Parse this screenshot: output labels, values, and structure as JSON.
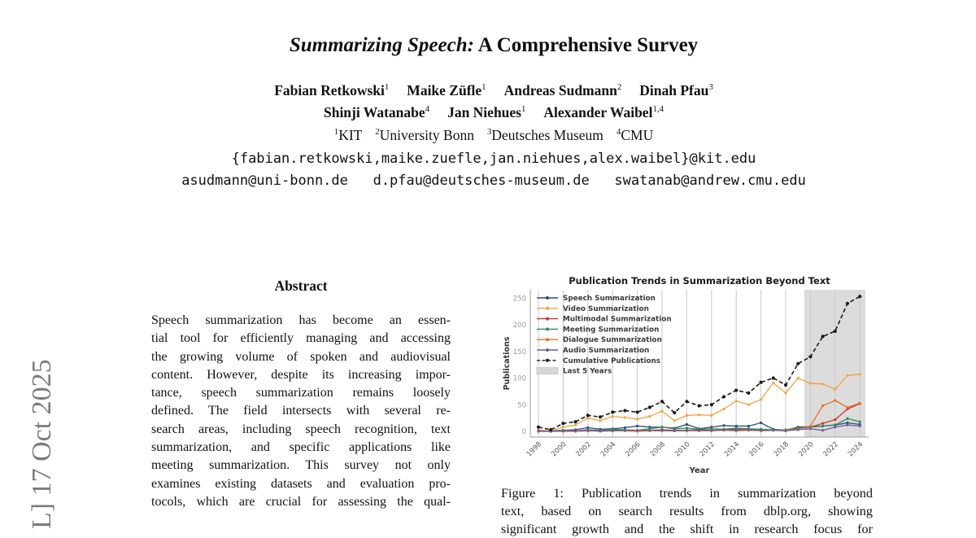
{
  "watermark": {
    "text": "L] 17 Oct 2025"
  },
  "header": {
    "title_italic": "Summarizing Speech:",
    "title_rest": " A Comprehensive Survey",
    "author_rows": [
      [
        {
          "name": "Fabian Retkowski",
          "sup": "1"
        },
        {
          "name": "Maike Züfle",
          "sup": "1"
        },
        {
          "name": "Andreas Sudmann",
          "sup": "2"
        },
        {
          "name": "Dinah Pfau",
          "sup": "3"
        }
      ],
      [
        {
          "name": "Shinji Watanabe",
          "sup": "4"
        },
        {
          "name": "Jan Niehues",
          "sup": "1"
        },
        {
          "name": "Alexander Waibel",
          "sup": "1,4"
        }
      ]
    ],
    "affiliations": [
      {
        "sup": "1",
        "name": "KIT"
      },
      {
        "sup": "2",
        "name": "University Bonn"
      },
      {
        "sup": "3",
        "name": "Deutsches Museum"
      },
      {
        "sup": "4",
        "name": "CMU"
      }
    ],
    "emails": [
      "{fabian.retkowski,maike.zuefle,jan.niehues,alex.waibel}@kit.edu",
      "asudmann@uni-bonn.de   d.pfau@deutsches-museum.de   swatanab@andrew.cmu.edu"
    ]
  },
  "abstract": {
    "heading": "Abstract",
    "lines": [
      "Speech summarization has become an essen-",
      "tial tool for efficiently managing and accessing",
      "the growing volume of spoken and audiovisual",
      "content. However, despite its increasing impor-",
      "tance, speech summarization remains loosely",
      "defined. The field intersects with several re-",
      "search areas, including speech recognition, text",
      "summarization, and specific applications like",
      "meeting summarization. This survey not only",
      "examines existing datasets and evaluation pro-",
      "tocols, which are crucial for assessing the qual-"
    ]
  },
  "figure": {
    "caption_lines": [
      "Figure 1: Publication trends in summarization beyond",
      "text, based on search results from dblp.org, showing",
      "significant growth and the shift in research focus for"
    ]
  },
  "chart_data": {
    "type": "line",
    "title": "Publication Trends in Summarization Beyond Text",
    "xlabel": "Year",
    "ylabel": "Publications",
    "x": [
      1998,
      1999,
      2000,
      2001,
      2002,
      2003,
      2004,
      2005,
      2006,
      2007,
      2008,
      2009,
      2010,
      2011,
      2012,
      2013,
      2014,
      2015,
      2016,
      2017,
      2018,
      2019,
      2020,
      2021,
      2022,
      2023,
      2024
    ],
    "xticks": [
      1998,
      2000,
      2002,
      2004,
      2006,
      2008,
      2010,
      2012,
      2014,
      2016,
      2018,
      2020,
      2022,
      2024
    ],
    "yticks": [
      0,
      50,
      100,
      150,
      200,
      250
    ],
    "ylim": [
      -10,
      262
    ],
    "grid": "vertical",
    "legend_position": "upper left",
    "series": [
      {
        "name": "Speech Summarization",
        "color": "#2f4b7c",
        "values": [
          2,
          1,
          2,
          3,
          7,
          4,
          5,
          7,
          10,
          8,
          8,
          6,
          13,
          5,
          8,
          11,
          10,
          10,
          16,
          4,
          2,
          8,
          9,
          10,
          12,
          16,
          13
        ]
      },
      {
        "name": "Video Summarization",
        "color": "#f5a142",
        "values": [
          2,
          1,
          8,
          12,
          25,
          20,
          28,
          26,
          23,
          28,
          38,
          20,
          30,
          31,
          30,
          42,
          57,
          50,
          60,
          91,
          72,
          100,
          90,
          89,
          79,
          105,
          107
        ]
      },
      {
        "name": "Multimodal Summarization",
        "color": "#c8372d",
        "values": [
          0,
          0,
          1,
          0,
          1,
          1,
          2,
          2,
          1,
          2,
          3,
          2,
          2,
          3,
          2,
          3,
          4,
          3,
          2,
          3,
          2,
          5,
          8,
          15,
          22,
          42,
          52
        ]
      },
      {
        "name": "Meeting Summarization",
        "color": "#2e8b57",
        "values": [
          0,
          0,
          2,
          1,
          3,
          2,
          4,
          3,
          2,
          5,
          8,
          5,
          6,
          4,
          5,
          4,
          6,
          5,
          4,
          3,
          3,
          6,
          8,
          10,
          12,
          24,
          18
        ]
      },
      {
        "name": "Dialogue Summarization",
        "color": "#e4732a",
        "values": [
          0,
          0,
          0,
          0,
          1,
          0,
          1,
          1,
          0,
          1,
          1,
          1,
          1,
          1,
          1,
          2,
          1,
          2,
          1,
          2,
          2,
          4,
          10,
          48,
          58,
          45,
          53
        ]
      },
      {
        "name": "Audio Summarization",
        "color": "#6f5b9e",
        "values": [
          1,
          0,
          1,
          1,
          2,
          1,
          1,
          2,
          2,
          2,
          2,
          1,
          2,
          2,
          2,
          3,
          2,
          3,
          2,
          2,
          1,
          3,
          5,
          2,
          8,
          12,
          10
        ]
      },
      {
        "name": "Cumulative Publications",
        "color": "#1a1a1a",
        "dashed": true,
        "values": [
          8,
          3,
          15,
          18,
          30,
          27,
          36,
          39,
          36,
          45,
          56,
          35,
          56,
          48,
          50,
          65,
          77,
          72,
          92,
          100,
          87,
          127,
          140,
          178,
          188,
          240,
          253
        ]
      }
    ],
    "shaded_region": {
      "label": "Last 5 Years",
      "x_start": 2019.5,
      "x_end": 2024.45,
      "color": "#dcdcdc"
    }
  }
}
